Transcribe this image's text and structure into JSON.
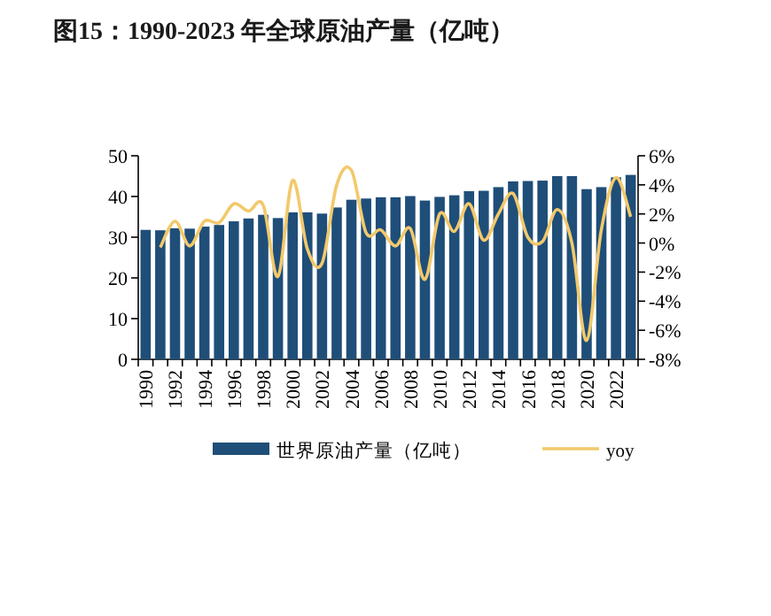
{
  "chart_data": {
    "type": "bar",
    "title": "图15：1990-2023 年全球原油产量（亿吨）",
    "categories": [
      "1990",
      null,
      "1992",
      null,
      "1994",
      null,
      "1996",
      null,
      "1998",
      null,
      "2000",
      null,
      "2002",
      null,
      "2004",
      null,
      "2006",
      null,
      "2008",
      null,
      "2010",
      null,
      "2012",
      null,
      "2014",
      null,
      "2016",
      null,
      "2018",
      null,
      "2020",
      null,
      "2022",
      null
    ],
    "series": [
      {
        "name": "世界原油产量（亿吨）",
        "color": "#1f4e79",
        "values": [
          31.8,
          31.7,
          32.2,
          32.1,
          32.6,
          33.0,
          33.9,
          34.6,
          35.5,
          34.7,
          36.1,
          36.1,
          35.8,
          37.3,
          39.2,
          39.5,
          39.8,
          39.8,
          40.1,
          39.0,
          39.9,
          40.3,
          41.3,
          41.4,
          42.3,
          43.7,
          43.8,
          43.9,
          45.0,
          45.0,
          41.8,
          42.3,
          44.7,
          45.3
        ]
      },
      {
        "name": "yoy",
        "type": "line",
        "axis": "y2",
        "color": "#f2c96b",
        "values": [
          null,
          -0.3,
          1.5,
          -0.2,
          1.5,
          1.4,
          2.7,
          2.2,
          2.6,
          -2.3,
          4.3,
          -0.4,
          -1.4,
          4.0,
          5.0,
          0.7,
          0.9,
          -0.2,
          1.0,
          -2.5,
          2.0,
          0.8,
          2.7,
          0.2,
          2.0,
          3.4,
          0.4,
          0.1,
          2.3,
          0.0,
          -6.7,
          0.9,
          4.5,
          1.8
        ]
      }
    ],
    "ylim": [
      0,
      50
    ],
    "yticks": [
      0,
      10,
      20,
      30,
      40,
      50
    ],
    "y2lim": [
      -8,
      6
    ],
    "y2ticks": [
      {
        "value": -8,
        "label": "-8%"
      },
      {
        "value": -6,
        "label": "-6%"
      },
      {
        "value": -4,
        "label": "-4%"
      },
      {
        "value": -2,
        "label": "-2%"
      },
      {
        "value": 0,
        "label": "0%"
      },
      {
        "value": 2,
        "label": "2%"
      },
      {
        "value": 4,
        "label": "4%"
      },
      {
        "value": 6,
        "label": "6%"
      }
    ],
    "legend": "bottom",
    "grid": false,
    "marker": "none"
  }
}
